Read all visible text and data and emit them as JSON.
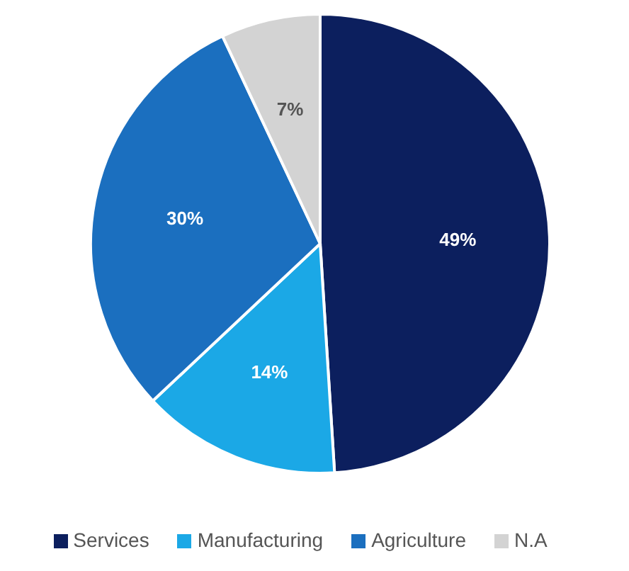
{
  "chart_data": {
    "type": "pie",
    "categories": [
      "Services",
      "Manufacturing",
      "Agriculture",
      "N.A"
    ],
    "values": [
      49,
      14,
      30,
      7
    ],
    "colors": [
      "#0c1f5e",
      "#1ba8e6",
      "#1b6fbf",
      "#d3d3d3"
    ],
    "value_labels": [
      "49%",
      "14%",
      "30%",
      "7%"
    ],
    "legend": "bottom"
  }
}
